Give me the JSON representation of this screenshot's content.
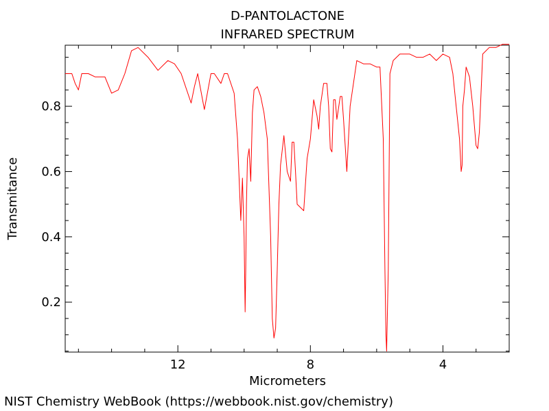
{
  "footer": "NIST Chemistry WebBook (https://webbook.nist.gov/chemistry)",
  "chart_data": {
    "type": "line",
    "title": "D-PANTOLACTONE",
    "subtitle": "INFRARED SPECTRUM",
    "xlabel": "Micrometers",
    "ylabel": "Transmitance",
    "xlim": [
      15.4,
      2.0
    ],
    "ylim": [
      0.047,
      0.987
    ],
    "x_ticks": [
      12,
      8,
      4
    ],
    "y_ticks": [
      0.2,
      0.4,
      0.6,
      0.8
    ],
    "grid": false,
    "line_color": "#ff0000",
    "series": [
      {
        "x": [
          15.4,
          15.2,
          15.1,
          15.0,
          14.9,
          14.7,
          14.5,
          14.2,
          14.0,
          13.8,
          13.6,
          13.4,
          13.2,
          12.9,
          12.6,
          12.3,
          12.1,
          11.9,
          11.6,
          11.5,
          11.4,
          11.2,
          11.0,
          10.9,
          10.7,
          10.6,
          10.5,
          10.3,
          10.2,
          10.1,
          10.05,
          10.0,
          9.97,
          9.95,
          9.93,
          9.9,
          9.85,
          9.8,
          9.75,
          9.7,
          9.6,
          9.5,
          9.4,
          9.3,
          9.2,
          9.15,
          9.1,
          9.05,
          9.0,
          8.95,
          8.9,
          8.8,
          8.7,
          8.6,
          8.55,
          8.5,
          8.45,
          8.4,
          8.3,
          8.2,
          8.1,
          8.0,
          7.9,
          7.8,
          7.75,
          7.7,
          7.6,
          7.5,
          7.45,
          7.4,
          7.35,
          7.3,
          7.25,
          7.2,
          7.1,
          7.05,
          7.0,
          6.9,
          6.8,
          6.6,
          6.4,
          6.2,
          6.0,
          5.9,
          5.8,
          5.75,
          5.72,
          5.7,
          5.65,
          5.6,
          5.5,
          5.3,
          5.0,
          4.8,
          4.6,
          4.4,
          4.2,
          4.0,
          3.8,
          3.7,
          3.6,
          3.5,
          3.45,
          3.42,
          3.4,
          3.35,
          3.3,
          3.2,
          3.1,
          3.0,
          2.95,
          2.9,
          2.8,
          2.6,
          2.4,
          2.2,
          2.0
        ],
        "y": [
          0.9,
          0.9,
          0.87,
          0.85,
          0.9,
          0.9,
          0.89,
          0.89,
          0.84,
          0.85,
          0.9,
          0.97,
          0.98,
          0.95,
          0.91,
          0.94,
          0.93,
          0.9,
          0.81,
          0.86,
          0.9,
          0.79,
          0.9,
          0.9,
          0.87,
          0.9,
          0.9,
          0.84,
          0.7,
          0.45,
          0.58,
          0.4,
          0.17,
          0.3,
          0.5,
          0.64,
          0.67,
          0.57,
          0.78,
          0.85,
          0.86,
          0.83,
          0.78,
          0.7,
          0.4,
          0.15,
          0.09,
          0.12,
          0.3,
          0.5,
          0.62,
          0.71,
          0.6,
          0.57,
          0.69,
          0.69,
          0.6,
          0.5,
          0.49,
          0.48,
          0.64,
          0.7,
          0.82,
          0.77,
          0.73,
          0.8,
          0.87,
          0.87,
          0.8,
          0.67,
          0.66,
          0.82,
          0.82,
          0.76,
          0.83,
          0.83,
          0.76,
          0.6,
          0.8,
          0.94,
          0.93,
          0.93,
          0.92,
          0.92,
          0.7,
          0.3,
          0.1,
          0.05,
          0.3,
          0.9,
          0.94,
          0.96,
          0.96,
          0.95,
          0.95,
          0.96,
          0.94,
          0.96,
          0.95,
          0.9,
          0.8,
          0.7,
          0.6,
          0.62,
          0.8,
          0.85,
          0.92,
          0.89,
          0.8,
          0.68,
          0.67,
          0.72,
          0.96,
          0.98,
          0.98,
          0.99,
          0.99
        ]
      }
    ]
  }
}
